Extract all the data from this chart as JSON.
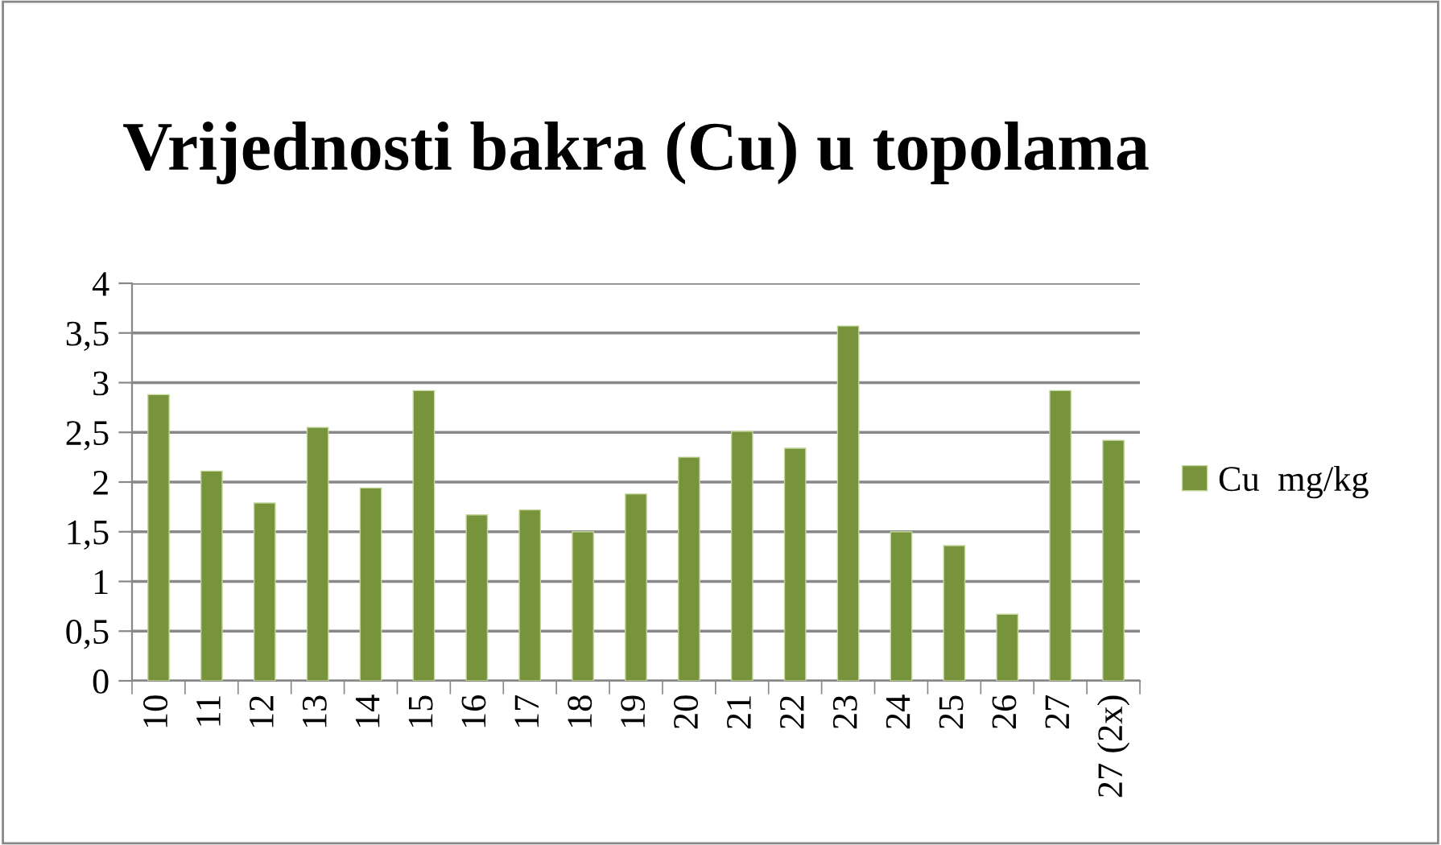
{
  "chart_data": {
    "type": "bar",
    "title": "Vrijednosti bakra (Cu) u topolama",
    "categories": [
      "10",
      "11",
      "12",
      "13",
      "14",
      "15",
      "16",
      "17",
      "18",
      "19",
      "20",
      "21",
      "22",
      "23",
      "24",
      "25",
      "26",
      "27",
      "27 (2x)"
    ],
    "series": [
      {
        "name": "Cu  mg/kg",
        "color": "#77933c",
        "values": [
          2.88,
          2.11,
          1.79,
          2.55,
          1.94,
          2.92,
          1.67,
          1.72,
          1.5,
          1.88,
          2.25,
          2.51,
          2.34,
          3.57,
          1.5,
          1.36,
          0.67,
          2.92,
          2.42
        ]
      }
    ],
    "ylim": [
      0,
      4
    ],
    "yticks": [
      0,
      {
        "value": 0.5,
        "label": "0,5"
      },
      1,
      {
        "value": 1.5,
        "label": "1,5"
      },
      2,
      {
        "value": 2.5,
        "label": "2,5"
      },
      3,
      {
        "value": 3.5,
        "label": "3,5"
      },
      4
    ],
    "grid": "y",
    "legend": "right"
  }
}
